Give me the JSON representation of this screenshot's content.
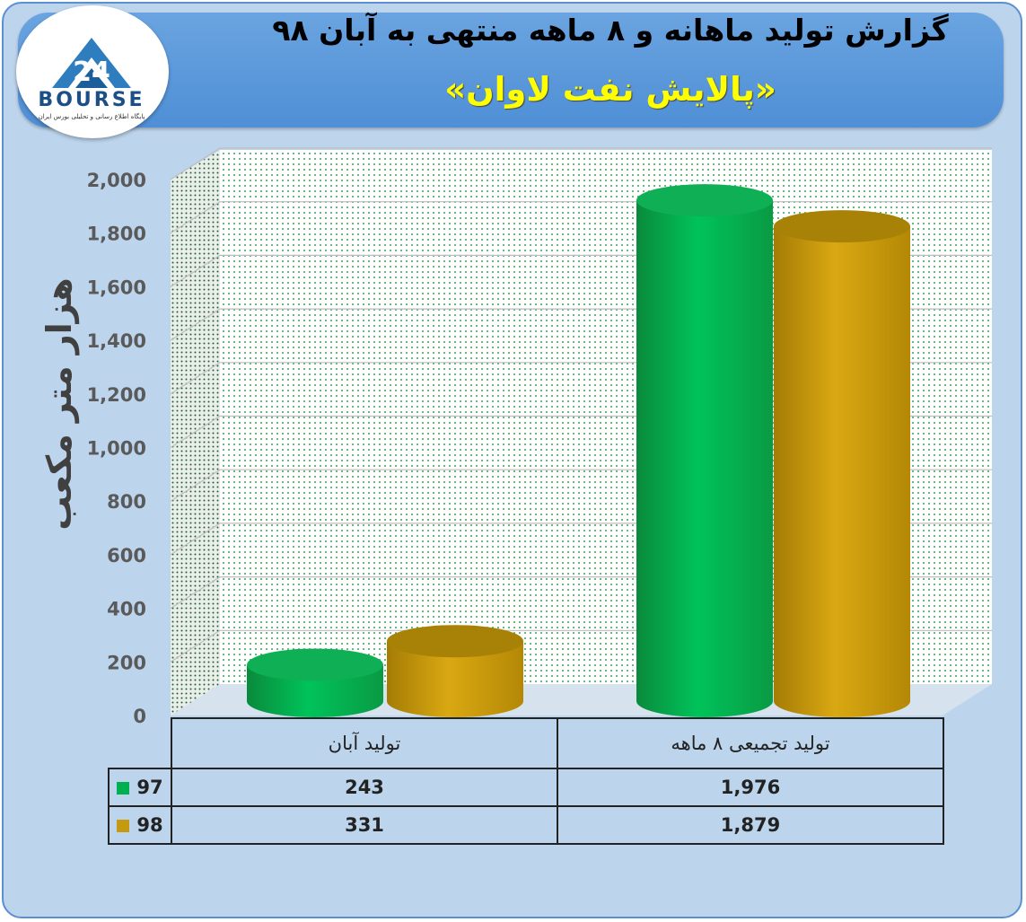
{
  "title": "گزارش تولید ماهانه و ۸ ماهه منتهی به آبان ۹۸",
  "subtitle": "«پالایش نفت لاوان»",
  "logo": {
    "text": "BOURSE",
    "tagline": "پایگاه اطلاع رسانی و تحلیلی بورس ایران"
  },
  "colors": {
    "series_97": "#00b050",
    "series_98": "#c59a10",
    "background": "#bcd4ec",
    "banner": "#5b95da",
    "title2": "#ffff00"
  },
  "chart_data": {
    "type": "bar",
    "categories": [
      "تولید آبان",
      "تولید تجمیعی ۸ ماهه"
    ],
    "series": [
      {
        "name": "97",
        "values": [
          243,
          1976
        ]
      },
      {
        "name": "98",
        "values": [
          331,
          1879
        ]
      }
    ],
    "ylabel": "هزار متر مکعب",
    "ylim": [
      0,
      2000
    ],
    "yticks": [
      "0",
      "200",
      "400",
      "600",
      "800",
      "1,000",
      "1,200",
      "1,400",
      "1,600",
      "1,800",
      "2,000"
    ],
    "grid": true,
    "legend": "data table below chart",
    "table": [
      {
        "key": "97",
        "values": [
          "243",
          "1,976"
        ]
      },
      {
        "key": "98",
        "values": [
          "331",
          "1,879"
        ]
      }
    ]
  }
}
